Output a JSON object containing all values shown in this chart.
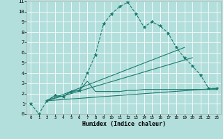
{
  "title": "",
  "xlabel": "Humidex (Indice chaleur)",
  "bg_color": "#b2dfdb",
  "grid_color": "#ffffff",
  "line_color": "#1a7a6e",
  "xlim": [
    -0.5,
    23.5
  ],
  "ylim": [
    0,
    11
  ],
  "xticks": [
    0,
    1,
    2,
    3,
    4,
    5,
    6,
    7,
    8,
    9,
    10,
    11,
    12,
    13,
    14,
    15,
    16,
    17,
    18,
    19,
    20,
    21,
    22,
    23
  ],
  "yticks": [
    0,
    1,
    2,
    3,
    4,
    5,
    6,
    7,
    8,
    9,
    10,
    11
  ],
  "series1_x": [
    0,
    1,
    2,
    3,
    4,
    5,
    6,
    7,
    8,
    9,
    10,
    11,
    12,
    13,
    14,
    15,
    16,
    17,
    18,
    19,
    20,
    21,
    22,
    23
  ],
  "series1_y": [
    1,
    0,
    1.3,
    1.8,
    1.7,
    2.2,
    2.3,
    4.0,
    5.8,
    8.8,
    9.8,
    10.5,
    10.9,
    9.8,
    8.5,
    9.0,
    8.6,
    7.9,
    6.5,
    5.5,
    4.7,
    3.8,
    2.5,
    2.5
  ],
  "series2_x": [
    2,
    3,
    4,
    5,
    6,
    7,
    8,
    9,
    10,
    11,
    12,
    13,
    14,
    15,
    16,
    17,
    18,
    19,
    20,
    21,
    22,
    23
  ],
  "series2_y": [
    1.3,
    1.8,
    1.7,
    2.2,
    2.3,
    3.2,
    2.2,
    2.2,
    2.2,
    2.2,
    2.3,
    2.3,
    2.4,
    2.4,
    2.4,
    2.4,
    2.4,
    2.4,
    2.4,
    2.4,
    2.4,
    2.4
  ],
  "series3_x": [
    2,
    19
  ],
  "series3_y": [
    1.3,
    6.5
  ],
  "series4_x": [
    2,
    20
  ],
  "series4_y": [
    1.3,
    5.5
  ],
  "series5_x": [
    2,
    23
  ],
  "series5_y": [
    1.3,
    2.5
  ]
}
